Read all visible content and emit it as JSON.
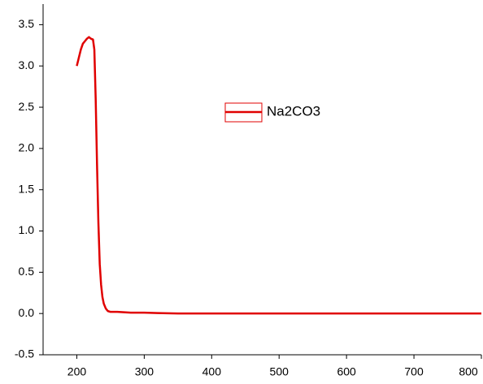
{
  "chart_data": {
    "type": "line",
    "x": [
      200,
      203,
      206,
      209,
      212,
      215,
      218,
      221,
      224,
      226,
      228,
      230,
      232,
      234,
      236,
      238,
      240,
      243,
      246,
      250,
      255,
      260,
      270,
      280,
      300,
      320,
      350,
      400,
      500,
      600,
      700,
      800
    ],
    "series": [
      {
        "name": "Na2CO3",
        "color": "#e00000",
        "values": [
          3.0,
          3.1,
          3.2,
          3.27,
          3.3,
          3.33,
          3.35,
          3.33,
          3.32,
          3.2,
          2.6,
          1.8,
          1.1,
          0.6,
          0.35,
          0.2,
          0.12,
          0.06,
          0.03,
          0.02,
          0.02,
          0.02,
          0.015,
          0.01,
          0.01,
          0.005,
          0.0,
          0.0,
          0.0,
          0.0,
          0.0,
          0.0
        ]
      }
    ],
    "xlim": [
      150,
      800
    ],
    "ylim": [
      -0.5,
      3.75
    ],
    "xticks": [
      200,
      300,
      400,
      500,
      600,
      700,
      800
    ],
    "yticks": [
      -0.5,
      {
        "value": 0,
        "label": "0.0"
      },
      0.5,
      {
        "value": 1,
        "label": "1.0"
      },
      1.5,
      {
        "value": 2,
        "label": "2.0"
      },
      2.5,
      {
        "value": 3,
        "label": "3.0"
      },
      3.5
    ]
  }
}
